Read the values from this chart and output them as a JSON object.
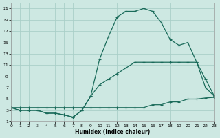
{
  "xlabel": "Humidex (Indice chaleur)",
  "bg_color": "#cde8e2",
  "grid_color": "#aacfc8",
  "line_color": "#1a6b5a",
  "xlim": [
    0,
    23
  ],
  "ylim": [
    1,
    22
  ],
  "xticks": [
    0,
    1,
    2,
    3,
    4,
    5,
    6,
    7,
    8,
    9,
    10,
    11,
    12,
    13,
    14,
    15,
    16,
    17,
    18,
    19,
    20,
    21,
    22,
    23
  ],
  "yticks": [
    1,
    3,
    5,
    7,
    9,
    11,
    13,
    15,
    17,
    19,
    21
  ],
  "line_flat_x": [
    0,
    1,
    2,
    3,
    4,
    5,
    6,
    7,
    8,
    9,
    10,
    11,
    12,
    13,
    14,
    15,
    16,
    17,
    18,
    19,
    20,
    21,
    22,
    23
  ],
  "line_flat_y": [
    3.5,
    3.5,
    3.5,
    3.5,
    3.5,
    3.5,
    3.5,
    3.5,
    3.5,
    3.5,
    3.5,
    3.5,
    3.5,
    3.5,
    3.5,
    3.5,
    4.0,
    4.0,
    4.5,
    4.5,
    5.0,
    5.0,
    5.2,
    5.3
  ],
  "line_mid_x": [
    0,
    1,
    2,
    3,
    4,
    5,
    6,
    7,
    8,
    9,
    10,
    11,
    12,
    13,
    14,
    15,
    16,
    17,
    18,
    19,
    20,
    21,
    22,
    23
  ],
  "line_mid_y": [
    3.5,
    3.0,
    3.0,
    3.0,
    2.5,
    2.5,
    2.2,
    1.8,
    3.0,
    5.5,
    7.5,
    8.5,
    9.5,
    10.5,
    11.5,
    11.5,
    11.5,
    11.5,
    11.5,
    11.5,
    11.5,
    11.5,
    8.5,
    5.5
  ],
  "line_high_x": [
    0,
    1,
    2,
    3,
    4,
    5,
    6,
    7,
    8,
    9,
    10,
    11,
    12,
    13,
    14,
    15,
    16,
    17,
    18,
    19,
    20,
    21,
    22,
    23
  ],
  "line_high_y": [
    3.5,
    3.0,
    3.0,
    3.0,
    2.5,
    2.5,
    2.2,
    1.8,
    3.0,
    5.5,
    12.0,
    16.0,
    19.5,
    20.5,
    20.5,
    21.0,
    20.5,
    18.5,
    15.5,
    14.5,
    15.0,
    11.5,
    7.0,
    5.5
  ]
}
